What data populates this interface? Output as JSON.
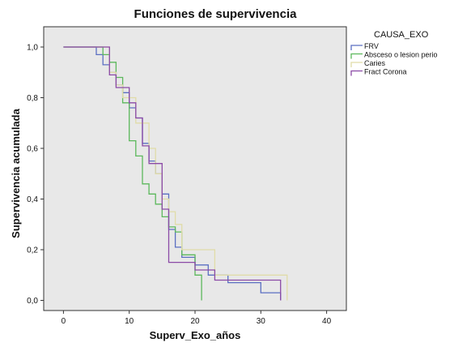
{
  "chart_data": {
    "type": "line",
    "step": true,
    "title": "Funciones de supervivencia",
    "xlabel": "Superv_Exo_años",
    "ylabel": "Supervivencia acumulada",
    "xlim": [
      -3,
      43
    ],
    "ylim": [
      -0.04,
      1.08
    ],
    "xticks": [
      0,
      10,
      20,
      30,
      40
    ],
    "xtick_labels": [
      "0",
      "10",
      "20",
      "30",
      "40"
    ],
    "yticks": [
      0,
      0.2,
      0.4,
      0.6,
      0.8,
      1.0
    ],
    "ytick_labels": [
      "0,0",
      "0,2",
      "0,4",
      "0,6",
      "0,8",
      "1,0"
    ],
    "grid": false,
    "plot_background": "#e8e8e8",
    "legend": {
      "title": "CAUSA_EXO",
      "position": "top-right"
    },
    "series": [
      {
        "name": "FRV",
        "color": "#5b6fc2",
        "points": [
          [
            0,
            1.0
          ],
          [
            5,
            0.97
          ],
          [
            6,
            0.93
          ],
          [
            7,
            0.9
          ],
          [
            8,
            0.85
          ],
          [
            9,
            0.82
          ],
          [
            10,
            0.76
          ],
          [
            11,
            0.72
          ],
          [
            12,
            0.62
          ],
          [
            13,
            0.55
          ],
          [
            14,
            0.5
          ],
          [
            15,
            0.42
          ],
          [
            16,
            0.28
          ],
          [
            17,
            0.21
          ],
          [
            18,
            0.17
          ],
          [
            20,
            0.14
          ],
          [
            22,
            0.1
          ],
          [
            25,
            0.07
          ],
          [
            30,
            0.03
          ],
          [
            33,
            0.0
          ]
        ]
      },
      {
        "name": "Absceso o lesion perio",
        "color": "#5cb85c",
        "points": [
          [
            0,
            1.0
          ],
          [
            6,
            0.97
          ],
          [
            7,
            0.94
          ],
          [
            8,
            0.88
          ],
          [
            9,
            0.78
          ],
          [
            10,
            0.63
          ],
          [
            11,
            0.57
          ],
          [
            12,
            0.46
          ],
          [
            13,
            0.42
          ],
          [
            14,
            0.38
          ],
          [
            15,
            0.33
          ],
          [
            16,
            0.29
          ],
          [
            17,
            0.27
          ],
          [
            18,
            0.18
          ],
          [
            20,
            0.1
          ],
          [
            21,
            0.0
          ]
        ]
      },
      {
        "name": "Caries",
        "color": "#e0dca8",
        "points": [
          [
            0,
            1.0
          ],
          [
            7,
            0.9
          ],
          [
            8,
            0.85
          ],
          [
            9,
            0.8
          ],
          [
            10,
            0.8
          ],
          [
            11,
            0.7
          ],
          [
            13,
            0.6
          ],
          [
            14,
            0.5
          ],
          [
            15,
            0.4
          ],
          [
            16,
            0.35
          ],
          [
            17,
            0.3
          ],
          [
            18,
            0.2
          ],
          [
            23,
            0.1
          ],
          [
            34,
            0.0
          ]
        ]
      },
      {
        "name": "Fract Corona",
        "color": "#8b4aa6",
        "points": [
          [
            0,
            1.0
          ],
          [
            7,
            0.89
          ],
          [
            8,
            0.84
          ],
          [
            10,
            0.78
          ],
          [
            11,
            0.72
          ],
          [
            12,
            0.61
          ],
          [
            13,
            0.54
          ],
          [
            15,
            0.36
          ],
          [
            16,
            0.15
          ],
          [
            19,
            0.15
          ],
          [
            20,
            0.12
          ],
          [
            23,
            0.08
          ],
          [
            28,
            0.08
          ],
          [
            33,
            0.0
          ]
        ]
      }
    ]
  }
}
